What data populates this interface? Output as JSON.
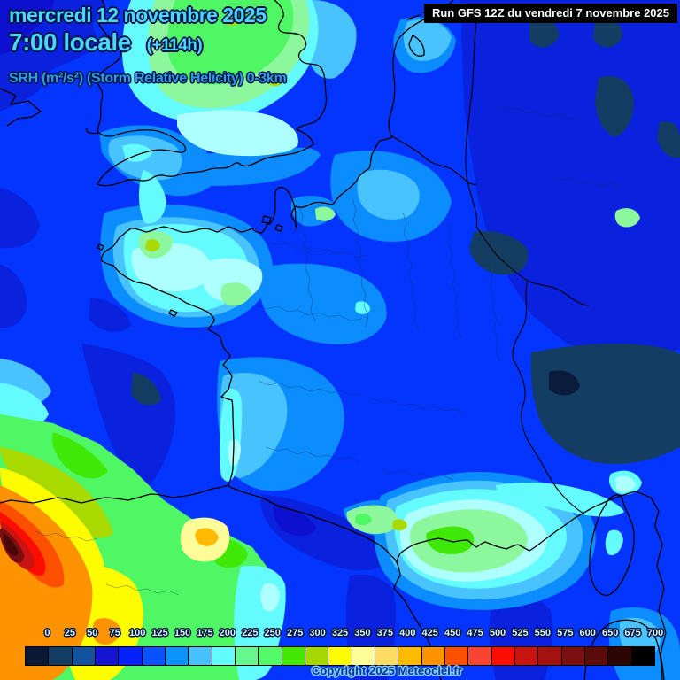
{
  "title_block": {
    "date": "mercredi 12 novembre 2025",
    "time": "7:00 locale",
    "forecast_offset": "(+114h)",
    "parameter": "SRH (m²/s²) (Storm Relative Helicity) 0-3km"
  },
  "run_label": "Run GFS 12Z du vendredi 7 novembre 2025",
  "copyright": "Copyright 2025 Meteociel.fr",
  "legend": {
    "values": [
      "0",
      "25",
      "50",
      "75",
      "100",
      "125",
      "150",
      "175",
      "200",
      "225",
      "250",
      "275",
      "300",
      "325",
      "350",
      "375",
      "400",
      "425",
      "450",
      "475",
      "500",
      "525",
      "550",
      "575",
      "600",
      "650",
      "675",
      "700"
    ],
    "cell_colors": [
      "#0a1834",
      "#133d62",
      "#15529e",
      "#1414d3",
      "#0522fb",
      "#0a52fe",
      "#0b93fe",
      "#47c2fe",
      "#63fcfe",
      "#66f78f",
      "#55fa6a",
      "#42e801",
      "#a5d800",
      "#fdfd00",
      "#fdfc98",
      "#fcdc63",
      "#fdba00",
      "#fd9300",
      "#fc5000",
      "#fb4334",
      "#fc0d00",
      "#c91310",
      "#a31111",
      "#7b0e0e",
      "#5c0b0b",
      "#2e0505",
      "#000000"
    ]
  },
  "colors": {
    "title_cyan": "#49d6f8",
    "parameter_blue": "#2f9ee4",
    "run_label_bg": "#000000",
    "run_label_text": "#ffffff",
    "legend_label_text": "#dafaff",
    "copyright_text": "#0a2e9e",
    "map_base_blue": "#0435ff"
  }
}
